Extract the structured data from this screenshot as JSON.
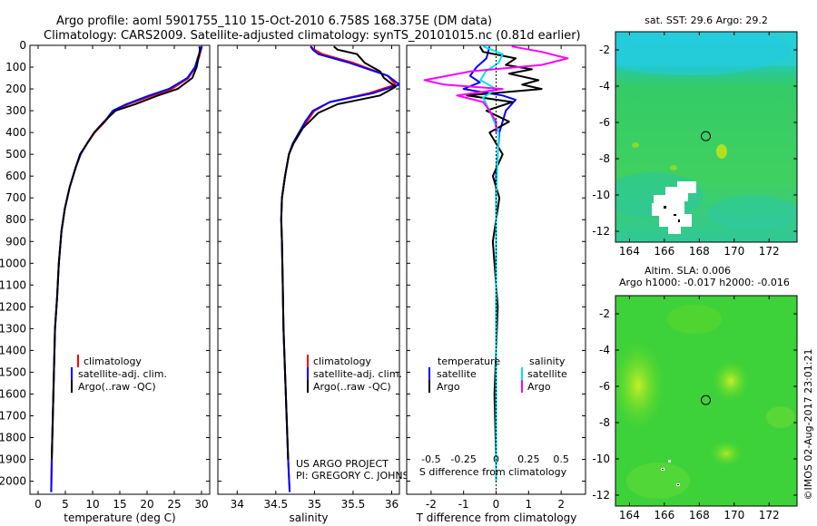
{
  "header": {
    "title_line1": "Argo profile: aoml 5901755_110 15-Oct-2010 6.758S 168.375E (DM data)",
    "title_line2": "Climatology: CARS2009. Satellite-adjusted climatology: synTS_20101015.nc (0.81d earlier)"
  },
  "colors": {
    "climatology": "#ff0000",
    "satellite": "#0000ff",
    "argo": "#000000",
    "salinity_satellite": "#00e5e5",
    "salinity_argo": "#ff00ff"
  },
  "chart_data": [
    {
      "type": "line",
      "name": "temperature",
      "xlabel": "temperature (deg C)",
      "ylabel": "depth",
      "xlim": [
        -1.5,
        31.5
      ],
      "ylim": [
        2060,
        0
      ],
      "xticks": [
        "0",
        "5",
        "10",
        "15",
        "20",
        "25",
        "30"
      ],
      "xtick_values": [
        0,
        5,
        10,
        15,
        20,
        25,
        30
      ],
      "yticks": [
        "0",
        "100",
        "200",
        "300",
        "400",
        "500",
        "600",
        "700",
        "800",
        "900",
        "1000",
        "1100",
        "1200",
        "1300",
        "1400",
        "1500",
        "1600",
        "1700",
        "1800",
        "1900",
        "2000"
      ],
      "ytick_values": [
        0,
        100,
        200,
        300,
        400,
        500,
        600,
        700,
        800,
        900,
        1000,
        1100,
        1200,
        1300,
        1400,
        1500,
        1600,
        1700,
        1800,
        1900,
        2000
      ],
      "legend": [
        "climatology",
        "satellite-adj. clim.",
        "Argo(..raw -QC)"
      ],
      "series": [
        {
          "name": "climatology",
          "color": "#ff0000",
          "x": [
            30.1,
            29.9,
            29.6,
            28.9,
            27.6,
            24.5,
            21.0,
            16.5,
            13.8,
            12.3,
            10.4,
            9.0,
            7.8,
            6.9,
            5.8,
            4.9,
            4.3,
            3.8,
            3.5,
            3.1,
            2.9,
            2.7,
            2.5,
            2.4
          ],
          "y": [
            5,
            20,
            50,
            100,
            150,
            200,
            230,
            270,
            300,
            350,
            400,
            450,
            500,
            560,
            650,
            750,
            850,
            1000,
            1150,
            1300,
            1500,
            1700,
            1900,
            2050
          ]
        },
        {
          "name": "satellite",
          "color": "#0000ff",
          "x": [
            30.0,
            29.9,
            29.4,
            28.8,
            27.4,
            24.0,
            20.4,
            16.2,
            13.7,
            12.2,
            10.3,
            9.0,
            7.8,
            6.9,
            5.8,
            4.9,
            4.3,
            3.8,
            3.5,
            3.1,
            2.9,
            2.7,
            2.5,
            2.4
          ],
          "y": [
            5,
            20,
            50,
            100,
            150,
            200,
            230,
            270,
            300,
            350,
            400,
            450,
            500,
            560,
            650,
            750,
            850,
            1000,
            1150,
            1300,
            1500,
            1700,
            1900,
            2050
          ]
        },
        {
          "name": "argo",
          "color": "#000000",
          "x": [
            29.6,
            29.7,
            29.5,
            29.1,
            28.3,
            25.6,
            22.0,
            17.8,
            14.2,
            12.1,
            10.3,
            9.0,
            7.7,
            6.9,
            5.8,
            4.9,
            4.3,
            3.8,
            3.5,
            3.1,
            2.9,
            2.7,
            2.5
          ],
          "y": [
            5,
            20,
            50,
            100,
            150,
            200,
            230,
            270,
            300,
            350,
            400,
            450,
            500,
            560,
            650,
            750,
            850,
            1000,
            1150,
            1300,
            1500,
            1700,
            1900
          ]
        }
      ]
    },
    {
      "type": "line",
      "name": "salinity",
      "xlabel": "salinity",
      "xlim": [
        33.75,
        36.1
      ],
      "ylim": [
        2060,
        0
      ],
      "xticks": [
        "34",
        "34.5",
        "35",
        "35.5",
        "36"
      ],
      "xtick_values": [
        34,
        34.5,
        35,
        35.5,
        36
      ],
      "legend": [
        "climatology",
        "satellite-adj. clim.",
        "Argo(..raw -QC)"
      ],
      "annotation_line1": "US ARGO PROJECT",
      "annotation_line2": "PI: GREGORY C. JOHNSON",
      "series": [
        {
          "name": "climatology",
          "color": "#ff0000",
          "x": [
            34.95,
            35.0,
            35.1,
            35.5,
            35.95,
            36.05,
            35.7,
            35.2,
            35.0,
            34.9,
            34.8,
            34.72,
            34.67,
            34.62,
            34.58,
            34.57,
            34.58,
            34.59,
            34.6,
            34.62,
            34.64,
            34.66,
            34.68
          ],
          "y": [
            5,
            20,
            40,
            80,
            140,
            180,
            220,
            260,
            300,
            350,
            400,
            450,
            500,
            600,
            700,
            800,
            900,
            1100,
            1300,
            1500,
            1700,
            1900,
            2050
          ]
        },
        {
          "name": "satellite",
          "color": "#0000ff",
          "x": [
            34.95,
            34.98,
            35.05,
            35.45,
            35.95,
            36.1,
            35.75,
            35.2,
            34.98,
            34.88,
            34.8,
            34.72,
            34.67,
            34.62,
            34.58,
            34.57,
            34.58,
            34.59,
            34.6,
            34.62,
            34.64,
            34.66,
            34.68
          ],
          "y": [
            5,
            20,
            40,
            80,
            140,
            180,
            220,
            260,
            300,
            350,
            400,
            450,
            500,
            600,
            700,
            800,
            900,
            1100,
            1300,
            1500,
            1700,
            1900,
            2050
          ]
        },
        {
          "name": "argo",
          "color": "#000000",
          "x": [
            35.25,
            35.3,
            35.55,
            35.65,
            35.85,
            35.9,
            36.05,
            35.85,
            35.3,
            35.05,
            34.85,
            34.73,
            34.67,
            34.62,
            34.58,
            34.57,
            34.58,
            34.59,
            34.6,
            34.62,
            34.64,
            34.66
          ],
          "y": [
            5,
            20,
            40,
            80,
            120,
            150,
            190,
            230,
            270,
            310,
            380,
            450,
            500,
            600,
            700,
            800,
            900,
            1100,
            1300,
            1500,
            1700,
            1900
          ]
        }
      ]
    },
    {
      "type": "line",
      "name": "difference",
      "xlabel": "T difference from climatology",
      "xlabel_top": "S difference from climatology",
      "xlim": [
        -2.75,
        2.75
      ],
      "ylim": [
        2060,
        0
      ],
      "xticks_bottom": [
        "-2",
        "-1",
        "0",
        "1",
        "2"
      ],
      "xtick_values_bottom": [
        -2,
        -1,
        0,
        1,
        2
      ],
      "xticks_salinity": [
        "-0.5",
        "-0.25",
        "0",
        "0.25",
        "0.5"
      ],
      "legend_temperature_title": "temperature",
      "legend_salinity_title": "salinity",
      "legend": [
        "satellite",
        "Argo",
        "satellite",
        "Argo"
      ],
      "series": [
        {
          "name": "T satellite",
          "color": "#0000ff",
          "x": [
            -0.2,
            -0.3,
            -0.6,
            -0.8,
            -0.5,
            -1.0,
            0.2,
            0.6,
            0.3,
            0.1,
            0,
            0,
            0,
            0
          ],
          "y": [
            5,
            60,
            100,
            140,
            170,
            200,
            230,
            250,
            300,
            400,
            600,
            1000,
            1500,
            2000
          ]
        },
        {
          "name": "T argo",
          "color": "#000000",
          "x": [
            -0.5,
            -0.4,
            0.6,
            0.3,
            1.1,
            0.4,
            1.3,
            0.8,
            1.4,
            -0.9,
            0.5,
            -0.3,
            0.4,
            -0.2,
            0.2,
            -0.1,
            0.1,
            -0.1,
            0.05,
            -0.05,
            0
          ],
          "y": [
            5,
            30,
            60,
            90,
            110,
            130,
            160,
            180,
            200,
            230,
            260,
            300,
            350,
            400,
            500,
            600,
            700,
            900,
            1200,
            1600,
            1900
          ]
        },
        {
          "name": "S satellite",
          "color": "#00e5e5",
          "x": [
            -0.1,
            0.05,
            0.02,
            -0.08,
            -0.12,
            0.0,
            -0.1,
            -0.05,
            0.02,
            0,
            0,
            0
          ],
          "y": [
            5,
            40,
            80,
            120,
            160,
            200,
            240,
            300,
            400,
            700,
            1200,
            2000
          ]
        },
        {
          "name": "S argo",
          "color": "#ff00ff",
          "x": [
            0.12,
            0.35,
            0.55,
            0.35,
            -0.2,
            -0.55,
            -0.4,
            0.05,
            -0.3,
            -0.1,
            -0.05,
            0.0,
            0.0
          ],
          "y": [
            5,
            30,
            60,
            90,
            120,
            160,
            180,
            200,
            230,
            260,
            300,
            350,
            400
          ]
        }
      ]
    },
    {
      "type": "heatmap",
      "name": "sst_map",
      "title": "sat. SST: 29.6  Argo: 29.2",
      "xlim": [
        163.2,
        173.6
      ],
      "ylim": [
        -12.6,
        -1.0
      ],
      "xticks": [
        "164",
        "166",
        "168",
        "170",
        "172"
      ],
      "xtick_values": [
        164,
        166,
        168,
        170,
        172
      ],
      "yticks": [
        "-2",
        "-4",
        "-6",
        "-8",
        "-10",
        "-12"
      ],
      "ytick_values": [
        -2,
        -4,
        -6,
        -8,
        -10,
        -12
      ],
      "marker": {
        "lon": 168.375,
        "lat": -6.758
      }
    },
    {
      "type": "heatmap",
      "name": "sla_map",
      "title_line1": "Altim. SLA: 0.006",
      "title_line2": "Argo h1000: -0.017  h2000: -0.016",
      "xlim": [
        163.2,
        173.6
      ],
      "ylim": [
        -12.6,
        -1.0
      ],
      "xticks": [
        "164",
        "166",
        "168",
        "170",
        "172"
      ],
      "xtick_values": [
        164,
        166,
        168,
        170,
        172
      ],
      "yticks": [
        "-2",
        "-4",
        "-6",
        "-8",
        "-10",
        "-12"
      ],
      "ytick_values": [
        -2,
        -4,
        -6,
        -8,
        -10,
        -12
      ],
      "marker": {
        "lon": 168.375,
        "lat": -6.758
      }
    }
  ],
  "credit": "©IMOS 02-Aug-2017 23:01:21"
}
